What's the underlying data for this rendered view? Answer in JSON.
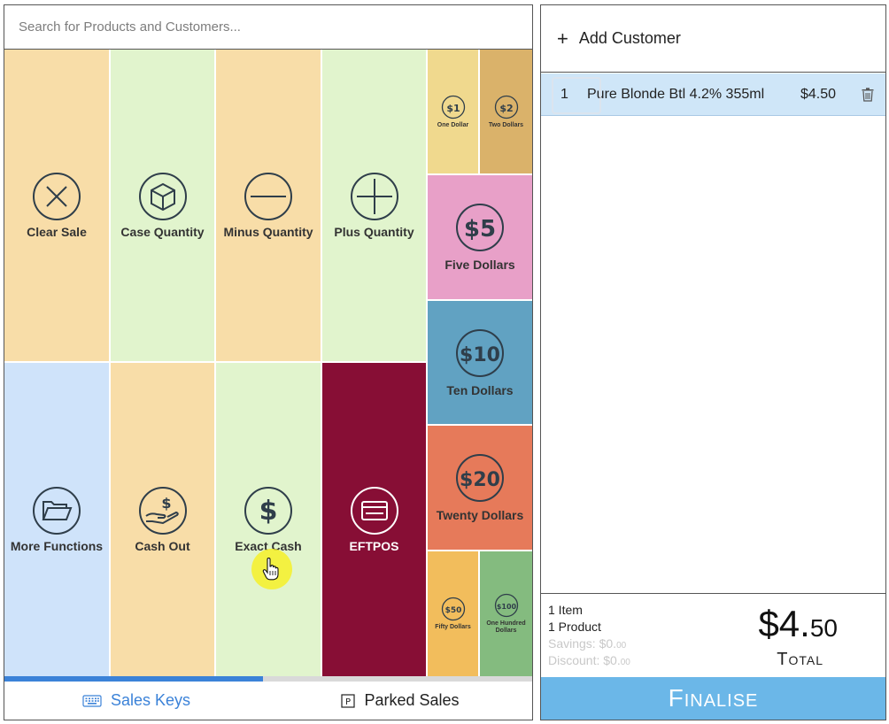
{
  "search": {
    "placeholder": "Search for Products and Customers..."
  },
  "tiles": {
    "clear_sale": "Clear Sale",
    "case_quantity": "Case Quantity",
    "minus_quantity": "Minus Quantity",
    "plus_quantity": "Plus Quantity",
    "more_functions": "More Functions",
    "cash_out": "Cash Out",
    "exact_cash": "Exact Cash",
    "eftpos": "EFTPOS"
  },
  "cash_tiles": {
    "one": {
      "label": "One Dollar",
      "symbol": "$1"
    },
    "two": {
      "label": "Two Dollars",
      "symbol": "$2"
    },
    "five": {
      "label": "Five Dollars",
      "symbol": "$5"
    },
    "ten": {
      "label": "Ten Dollars",
      "symbol": "$10"
    },
    "twenty": {
      "label": "Twenty Dollars",
      "symbol": "$20"
    },
    "fifty": {
      "label": "Fifty Dollars",
      "symbol": "$50"
    },
    "hundred": {
      "label": "One Hundred Dollars",
      "symbol": "$100"
    }
  },
  "colors": {
    "peach": "#f8dda8",
    "green": "#e1f4cd",
    "blue": "#cfe3fa",
    "eftpos": "#870e35",
    "one": "#f0d98e",
    "two": "#dab26a",
    "five": "#e8a0c8",
    "ten": "#61a2c2",
    "twenty": "#e67a5a",
    "fifty": "#f2bd5c",
    "hundred": "#84bb7f",
    "accent": "#3b82d8",
    "finalise": "#6bb7e8"
  },
  "pager": {
    "progress": 0.49
  },
  "bottom_tabs": {
    "sales_keys": "Sales Keys",
    "parked_sales": "Parked Sales"
  },
  "customer": {
    "add_label": "Add Customer",
    "icon": "plus-icon"
  },
  "sale": {
    "lines": [
      {
        "qty": "1",
        "name": "Pure Blonde Btl 4.2% 355ml",
        "price": "$4.50"
      }
    ]
  },
  "totals": {
    "items": "1 Item",
    "products": "1 Product",
    "savings_label": "Savings: $0.",
    "savings_cents": "00",
    "discount_label": "Discount: $0.",
    "discount_cents": "00",
    "total_dollars": "$4.",
    "total_cents": "50",
    "total_label": "Total"
  },
  "finalise_label": "Finalise"
}
